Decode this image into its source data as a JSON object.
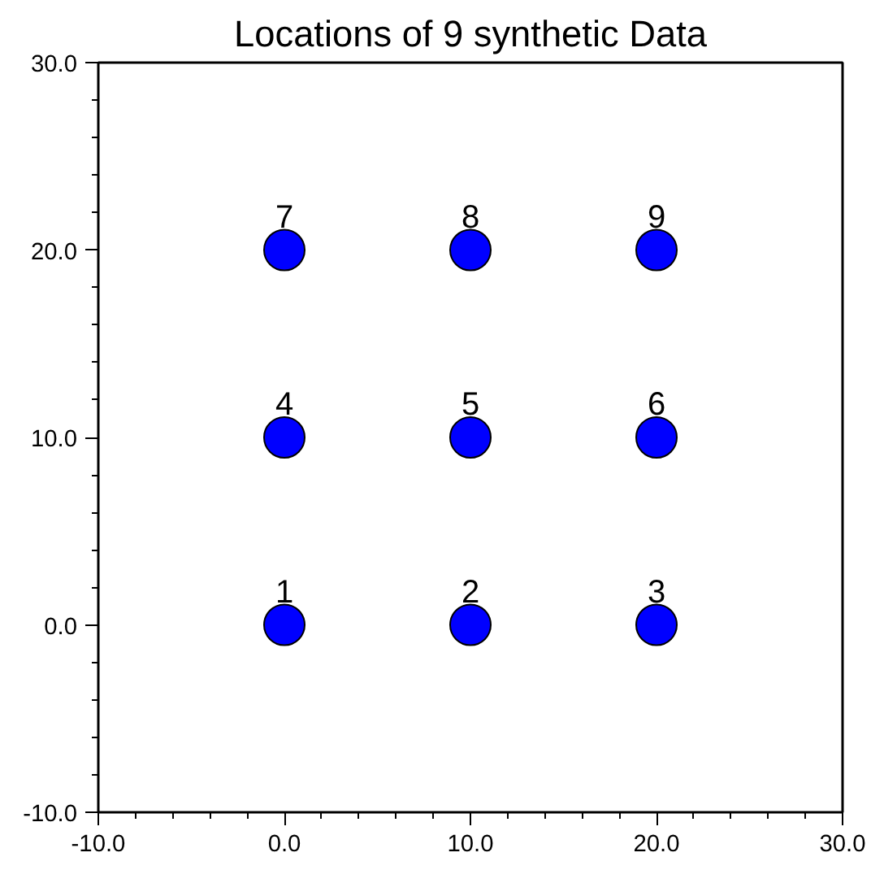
{
  "chart_data": {
    "type": "scatter",
    "title": "Locations of 9 synthetic Data",
    "x": [
      0,
      10,
      20,
      0,
      10,
      20,
      0,
      10,
      20
    ],
    "series": [
      {
        "color": "#0000ff",
        "values": [
          0,
          0,
          0,
          10,
          10,
          10,
          20,
          20,
          20
        ]
      }
    ],
    "marker": "circle",
    "xlim": [
      -10,
      30
    ],
    "ylim": [
      -10,
      30
    ],
    "xticks": [
      {
        "value": -10,
        "label": "-10.0"
      },
      {
        "value": 0,
        "label": "0.0"
      },
      {
        "value": 10,
        "label": "10.0"
      },
      {
        "value": 20,
        "label": "20.0"
      },
      {
        "value": 30,
        "label": "30.0"
      }
    ],
    "yticks": [
      {
        "value": -10,
        "label": "-10.0"
      },
      {
        "value": 0,
        "label": "0.0"
      },
      {
        "value": 10,
        "label": "10.0"
      },
      {
        "value": 20,
        "label": "20.0"
      },
      {
        "value": 30,
        "label": "30.0"
      }
    ],
    "annotations": [
      {
        "text": "1",
        "x": 0,
        "y": 0
      },
      {
        "text": "2",
        "x": 10,
        "y": 0
      },
      {
        "text": "3",
        "x": 20,
        "y": 0
      },
      {
        "text": "4",
        "x": 0,
        "y": 10
      },
      {
        "text": "5",
        "x": 10,
        "y": 10
      },
      {
        "text": "6",
        "x": 20,
        "y": 10
      },
      {
        "text": "7",
        "x": 0,
        "y": 20
      },
      {
        "text": "8",
        "x": 10,
        "y": 20
      },
      {
        "text": "9",
        "x": 20,
        "y": 20
      }
    ],
    "grid": false
  }
}
